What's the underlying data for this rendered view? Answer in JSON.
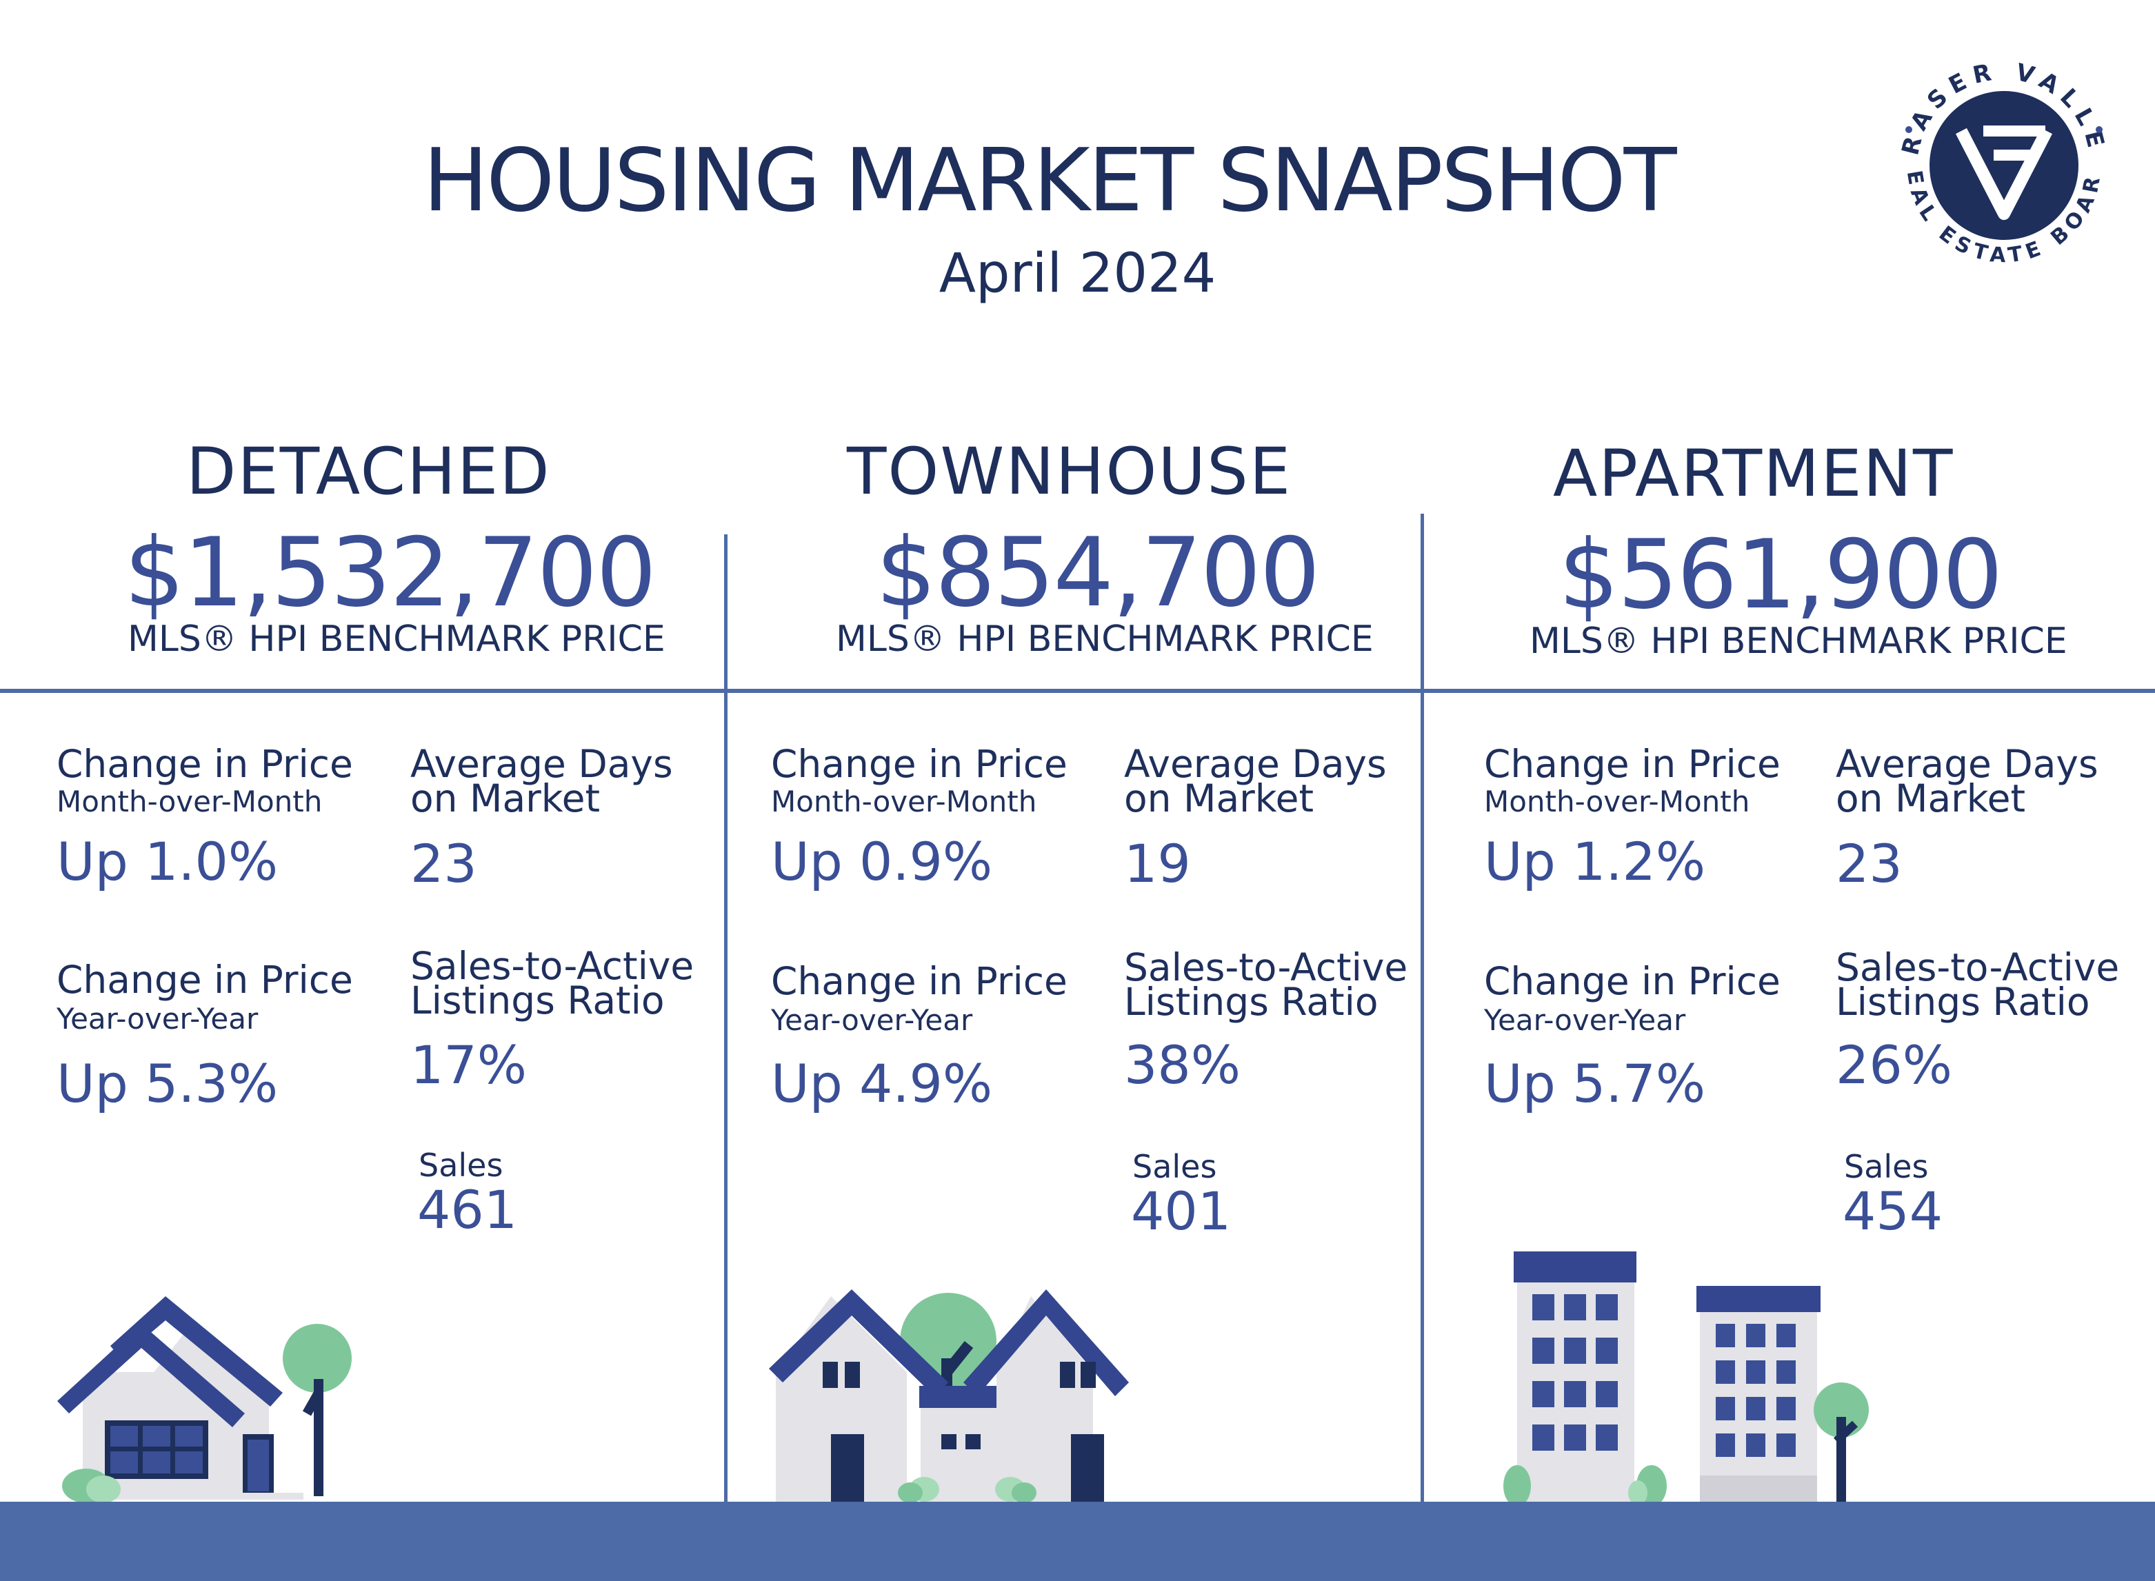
{
  "header": {
    "title": "HOUSING MARKET SNAPSHOT",
    "subtitle": "April 2024",
    "logo_text": "FRASER VALLEY REAL ESTATE BOARD"
  },
  "colors": {
    "navy": "#1e2f5c",
    "accent_blue": "#3a4f96",
    "divider_blue": "#4d6ba6",
    "green": "#7fc79a",
    "light_gray": "#e3e3e8"
  },
  "columns": [
    {
      "category": "DETACHED",
      "price": "$1,532,700",
      "price_label": "MLS® HPI BENCHMARK PRICE",
      "mom_label": "Change in Price",
      "mom_sublabel": "Month-over-Month",
      "mom_value": "Up 1.0%",
      "dom_label_1": "Average Days",
      "dom_label_2": "on Market",
      "dom_value": "23",
      "yoy_label": "Change in Price",
      "yoy_sublabel": "Year-over-Year",
      "yoy_value": "Up 5.3%",
      "ratio_label_1": "Sales-to-Active",
      "ratio_label_2": "Listings Ratio",
      "ratio_value": "17%",
      "sales_label": "Sales",
      "sales_value": "461"
    },
    {
      "category": "TOWNHOUSE",
      "price": "$854,700",
      "price_label": "MLS® HPI BENCHMARK PRICE",
      "mom_label": "Change in Price",
      "mom_sublabel": "Month-over-Month",
      "mom_value": "Up 0.9%",
      "dom_label_1": "Average Days",
      "dom_label_2": "on Market",
      "dom_value": "19",
      "yoy_label": "Change in Price",
      "yoy_sublabel": "Year-over-Year",
      "yoy_value": "Up 4.9%",
      "ratio_label_1": "Sales-to-Active",
      "ratio_label_2": "Listings Ratio",
      "ratio_value": "38%",
      "sales_label": "Sales",
      "sales_value": "401"
    },
    {
      "category": "APARTMENT",
      "price": "$561,900",
      "price_label": "MLS® HPI BENCHMARK PRICE",
      "mom_label": "Change in Price",
      "mom_sublabel": "Month-over-Month",
      "mom_value": "Up 1.2%",
      "dom_label_1": "Average Days",
      "dom_label_2": "on Market",
      "dom_value": "23",
      "yoy_label": "Change in Price",
      "yoy_sublabel": "Year-over-Year",
      "yoy_value": "Up 5.7%",
      "ratio_label_1": "Sales-to-Active",
      "ratio_label_2": "Listings Ratio",
      "ratio_value": "26%",
      "sales_label": "Sales",
      "sales_value": "454"
    }
  ],
  "illustrations": [
    "detached-house-icon",
    "townhouse-icon",
    "apartment-buildings-icon"
  ]
}
